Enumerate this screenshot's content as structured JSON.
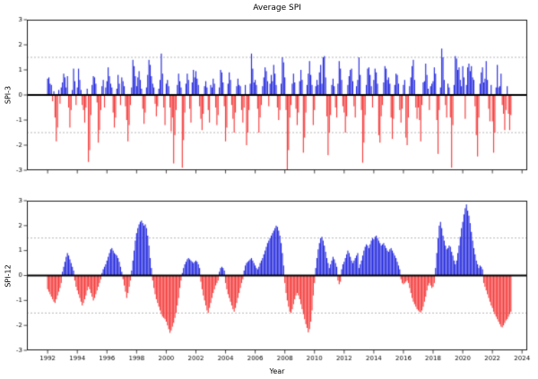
{
  "title": "Average SPI",
  "xlabel": "Year",
  "colors": {
    "positive_bar": "#2429dd",
    "negative_bar": "#f53b3b",
    "threshold_line": "#9a9a9a",
    "zero_line": "#000000",
    "spine": "#1a1a1a",
    "tick_text": "#000000",
    "background": "#ffffff"
  },
  "axes": {
    "x_ticks": [
      1992,
      1994,
      1996,
      1998,
      2000,
      2002,
      2004,
      2006,
      2008,
      2010,
      2012,
      2014,
      2016,
      2018,
      2020,
      2022,
      2024
    ],
    "y_ticks": [
      3,
      2,
      1,
      0,
      -1,
      -2,
      -3
    ],
    "y_tick_labels": [
      "3",
      "2",
      "1",
      "0",
      "-1",
      "-2",
      "-3"
    ],
    "ylim": [
      -3,
      3
    ],
    "xlim": [
      1990.6,
      2024.35
    ],
    "thresholds": [
      1.5,
      -1.5
    ],
    "grid": "dashed-thresholds-only",
    "legend": "none"
  },
  "chart_data": [
    {
      "type": "bar",
      "title": "Average SPI",
      "ylabel": "SPI-3",
      "xlabel": "Year",
      "frequency": "monthly",
      "start_year": 1992,
      "start_month": 1,
      "ylim": [
        -3,
        3
      ],
      "values_by_year": [
        [
          0.65,
          0.7,
          0.45,
          0.4,
          -0.25,
          0.15,
          -0.9,
          -1.85,
          -1.3,
          0.2,
          -0.35,
          0.3
        ],
        [
          0.5,
          0.85,
          0.7,
          0.3,
          0.75,
          -0.5,
          -1.3,
          -0.6,
          0.2,
          1.05,
          0.55,
          -0.4
        ],
        [
          0.3,
          1.05,
          0.6,
          0.2,
          -0.4,
          -0.6,
          -1.1,
          -0.5,
          0.25,
          -2.67,
          -2.2,
          -0.8
        ],
        [
          0.4,
          0.75,
          0.7,
          0.45,
          -0.3,
          -1.9,
          -1.4,
          -0.6,
          0.35,
          0.6,
          -0.5,
          0.3
        ],
        [
          0.55,
          1.1,
          0.75,
          0.45,
          0.3,
          -0.7,
          -1.3,
          -0.9,
          0.25,
          0.8,
          0.45,
          -0.4
        ],
        [
          0.7,
          0.55,
          0.35,
          -0.45,
          -1.0,
          -1.85,
          -1.2,
          -0.4,
          0.3,
          1.4,
          1.15,
          0.75
        ],
        [
          0.35,
          0.7,
          0.95,
          0.6,
          0.25,
          -0.55,
          -1.15,
          -0.7,
          0.3,
          0.8,
          1.4,
          1.2
        ],
        [
          0.75,
          0.45,
          0.3,
          -0.35,
          -0.85,
          -0.45,
          0.25,
          0.6,
          1.65,
          0.85,
          -0.5,
          -1.2
        ],
        [
          0.45,
          0.6,
          0.35,
          -0.5,
          -1.45,
          -0.9,
          -2.73,
          -1.6,
          -0.6,
          0.4,
          0.85,
          0.55
        ],
        [
          0.3,
          -2.9,
          -1.8,
          -0.7,
          0.45,
          0.85,
          0.6,
          -0.55,
          -1.1,
          0.5,
          1.0,
          0.7
        ],
        [
          0.95,
          0.65,
          0.4,
          -0.45,
          -0.95,
          -1.4,
          -0.75,
          0.35,
          0.55,
          0.3,
          -0.6,
          -1.1
        ],
        [
          0.4,
          0.3,
          0.65,
          0.45,
          -0.5,
          -1.2,
          -0.8,
          0.3,
          1.0,
          0.9,
          0.5,
          -0.45
        ],
        [
          -1.85,
          -1.3,
          0.45,
          0.9,
          0.6,
          -0.4,
          -0.95,
          -1.5,
          -0.7,
          0.35,
          0.65,
          0.4
        ],
        [
          0.35,
          -0.6,
          -1.1,
          -0.5,
          0.4,
          -2.0,
          -1.5,
          -0.6,
          0.45,
          1.65,
          1.05,
          0.5
        ],
        [
          0.6,
          0.4,
          -0.55,
          -1.5,
          -0.9,
          -0.4,
          0.35,
          0.7,
          1.1,
          0.95,
          0.55,
          -0.45
        ],
        [
          0.45,
          0.8,
          0.55,
          1.2,
          0.85,
          0.4,
          -0.5,
          -1.0,
          -0.6,
          0.45,
          1.5,
          1.3
        ],
        [
          0.7,
          -0.6,
          -2.97,
          -2.2,
          -0.9,
          -0.4,
          0.45,
          0.85,
          0.5,
          -0.55,
          -1.2,
          -0.7
        ],
        [
          0.55,
          1.0,
          0.6,
          -2.3,
          -1.7,
          -0.7,
          0.4,
          0.85,
          1.35,
          0.8,
          0.4,
          -1.2
        ],
        [
          -0.6,
          0.35,
          0.6,
          0.4,
          0.9,
          1.2,
          0.45,
          1.5,
          1.55,
          0.7,
          -0.85,
          -2.4
        ],
        [
          -1.5,
          -0.8,
          0.4,
          0.65,
          0.35,
          -0.5,
          -0.9,
          0.45,
          1.35,
          1.05,
          0.6,
          -0.45
        ],
        [
          -0.7,
          -1.5,
          -0.85,
          0.4,
          0.75,
          1.0,
          1.05,
          0.55,
          -0.45,
          -0.9,
          0.35,
          0.6
        ],
        [
          1.5,
          0.8,
          -0.6,
          -2.7,
          -1.9,
          -0.8,
          0.4,
          1.05,
          1.1,
          0.8,
          0.35,
          -0.5
        ],
        [
          0.6,
          1.05,
          0.9,
          0.45,
          -1.6,
          -1.9,
          -0.85,
          -0.4,
          0.5,
          1.15,
          1.05,
          0.6
        ],
        [
          0.7,
          0.45,
          -0.9,
          -1.75,
          -0.95,
          0.4,
          0.85,
          0.8,
          0.45,
          -0.6,
          -1.1,
          -0.55
        ],
        [
          0.4,
          0.6,
          -1.7,
          -2.0,
          -0.9,
          0.35,
          0.7,
          1.15,
          1.4,
          0.6,
          -0.5,
          -0.95
        ],
        [
          -0.5,
          -1.0,
          -1.85,
          -0.4,
          0.5,
          0.55,
          1.25,
          0.8,
          0.25,
          -0.6,
          0.35,
          0.45
        ],
        [
          0.55,
          1.1,
          0.85,
          -1.0,
          -2.35,
          -0.6,
          0.3,
          1.85,
          1.5,
          0.6,
          -0.4,
          -0.9
        ],
        [
          0.45,
          0.3,
          -0.9,
          -2.9,
          -1.2,
          0.4,
          1.55,
          1.45,
          1.0,
          1.1,
          0.6,
          0.35
        ],
        [
          1.15,
          0.7,
          -0.95,
          0.4,
          1.1,
          1.25,
          0.95,
          1.15,
          0.7,
          0.6,
          -0.45,
          -1.6
        ],
        [
          -2.45,
          -0.9,
          0.45,
          0.9,
          1.1,
          0.5,
          0.65,
          1.35,
          0.6,
          -0.55,
          -1.05,
          0.4
        ],
        [
          -1.05,
          -2.3,
          -1.5,
          0.3,
          1.2,
          0.3,
          0.35,
          0.85,
          -0.4,
          -0.75,
          -1.4,
          -0.6
        ],
        [
          0.35,
          -0.75,
          -1.4,
          -0.8
        ]
      ]
    },
    {
      "type": "bar",
      "ylabel": "SPI-12",
      "xlabel": "Year",
      "frequency": "monthly",
      "start_year": 1992,
      "start_month": 1,
      "ylim": [
        -3,
        3
      ],
      "values_by_year": [
        [
          -0.55,
          -0.65,
          -0.75,
          -0.85,
          -0.95,
          -1.05,
          -1.1,
          -0.95,
          -0.8,
          -0.65,
          -0.5,
          -0.3
        ],
        [
          0.15,
          0.35,
          0.55,
          0.75,
          0.9,
          0.8,
          0.65,
          0.5,
          0.35,
          0.2,
          -0.2,
          -0.45
        ],
        [
          -0.6,
          -0.75,
          -0.9,
          -1.05,
          -1.2,
          -1.1,
          -0.95,
          -0.8,
          -0.6,
          -0.45,
          -0.55,
          -0.7
        ],
        [
          -0.85,
          -1.0,
          -0.9,
          -0.75,
          -0.6,
          -0.45,
          -0.3,
          -0.15,
          0.1,
          0.25,
          0.35,
          0.45
        ],
        [
          0.6,
          0.75,
          0.9,
          1.05,
          1.1,
          1.0,
          0.9,
          0.85,
          0.8,
          0.7,
          0.55,
          0.35
        ],
        [
          0.15,
          -0.15,
          -0.4,
          -0.65,
          -0.9,
          -0.7,
          -0.45,
          -0.2,
          0.2,
          0.6,
          1.0,
          1.4
        ],
        [
          1.7,
          1.9,
          2.05,
          2.15,
          2.2,
          2.1,
          2.0,
          2.05,
          1.9,
          1.6,
          1.2,
          0.7
        ],
        [
          0.3,
          -0.2,
          -0.5,
          -0.75,
          -0.95,
          -1.1,
          -1.25,
          -1.4,
          -1.55,
          -1.65,
          -1.7,
          -1.75
        ],
        [
          -1.85,
          -2.0,
          -2.15,
          -2.3,
          -2.2,
          -2.05,
          -1.9,
          -1.7,
          -1.5,
          -1.2,
          -0.9,
          -0.5
        ],
        [
          -0.2,
          0.1,
          0.3,
          0.45,
          0.55,
          0.65,
          0.7,
          0.65,
          0.6,
          0.55,
          0.5,
          0.55
        ],
        [
          0.6,
          0.55,
          0.45,
          0.3,
          -0.25,
          -0.55,
          -0.8,
          -1.0,
          -1.2,
          -1.4,
          -1.5,
          -1.3
        ],
        [
          -1.1,
          -0.9,
          -0.7,
          -0.55,
          -0.4,
          -0.3,
          -0.2,
          0.15,
          0.3,
          0.35,
          0.3,
          0.2
        ],
        [
          -0.3,
          -0.55,
          -0.75,
          -0.9,
          -1.05,
          -1.2,
          -1.35,
          -1.45,
          -1.3,
          -1.1,
          -0.9,
          -0.7
        ],
        [
          -0.5,
          -0.3,
          -0.15,
          0.2,
          0.4,
          0.5,
          0.55,
          0.6,
          0.65,
          0.7,
          0.6,
          0.5
        ],
        [
          0.4,
          0.3,
          0.25,
          0.35,
          0.5,
          0.6,
          0.7,
          0.85,
          1.0,
          1.15,
          1.3,
          1.4
        ],
        [
          1.5,
          1.6,
          1.7,
          1.8,
          1.9,
          2.0,
          1.95,
          1.8,
          1.6,
          1.3,
          0.9,
          0.4
        ],
        [
          -0.3,
          -0.7,
          -1.0,
          -1.25,
          -1.45,
          -1.5,
          -1.35,
          -1.15,
          -0.95,
          -0.8,
          -0.7,
          -0.8
        ],
        [
          -0.95,
          -1.15,
          -1.35,
          -1.55,
          -1.75,
          -1.95,
          -2.1,
          -2.28,
          -2.15,
          -1.85,
          -1.4,
          -0.8
        ],
        [
          -0.3,
          0.3,
          0.7,
          1.05,
          1.3,
          1.5,
          1.55,
          1.4,
          1.2,
          0.95,
          0.7,
          0.5
        ],
        [
          0.3,
          0.45,
          0.6,
          0.75,
          0.65,
          0.5,
          0.35,
          -0.2,
          -0.35,
          -0.25,
          0.25,
          0.45
        ],
        [
          0.55,
          0.7,
          0.85,
          1.0,
          0.9,
          0.75,
          0.6,
          0.5,
          0.6,
          0.7,
          0.8,
          0.9
        ],
        [
          0.3,
          0.45,
          0.6,
          0.8,
          1.0,
          1.15,
          1.25,
          1.2,
          1.1,
          1.25,
          1.4,
          1.5
        ],
        [
          1.45,
          1.55,
          1.6,
          1.5,
          1.4,
          1.3,
          1.2,
          1.25,
          1.3,
          1.2,
          1.1,
          1.0
        ],
        [
          0.95,
          1.05,
          1.1,
          1.0,
          0.9,
          0.8,
          0.7,
          0.55,
          0.4,
          0.25,
          -0.15,
          -0.3
        ],
        [
          -0.35,
          -0.3,
          -0.25,
          -0.2,
          -0.3,
          -0.5,
          -0.7,
          -0.9,
          -1.05,
          -1.15,
          -1.25,
          -1.35
        ],
        [
          -1.4,
          -1.45,
          -1.48,
          -1.4,
          -1.25,
          -1.05,
          -0.85,
          -0.6,
          -0.4,
          -0.3,
          -0.4,
          -0.5
        ],
        [
          -0.45,
          -0.3,
          0.3,
          0.9,
          1.5,
          2.0,
          2.15,
          1.9,
          1.6,
          1.4,
          1.2,
          1.05
        ],
        [
          1.1,
          1.2,
          1.15,
          0.95,
          0.8,
          0.6,
          0.45,
          0.6,
          0.9,
          1.2,
          1.55,
          1.9
        ],
        [
          2.15,
          2.45,
          2.7,
          2.85,
          2.6,
          2.4,
          2.1,
          1.75,
          1.4,
          1.1,
          0.85,
          0.6
        ],
        [
          0.45,
          0.3,
          0.4,
          0.35,
          0.25,
          -0.3,
          -0.45,
          -0.6,
          -0.75,
          -0.9,
          -1.05,
          -1.2
        ],
        [
          -1.3,
          -1.45,
          -1.55,
          -1.65,
          -1.75,
          -1.85,
          -1.95,
          -2.05,
          -2.08,
          -2.0,
          -1.9,
          -1.8
        ],
        [
          -1.75,
          -1.65,
          -1.55,
          -1.45
        ]
      ]
    }
  ]
}
